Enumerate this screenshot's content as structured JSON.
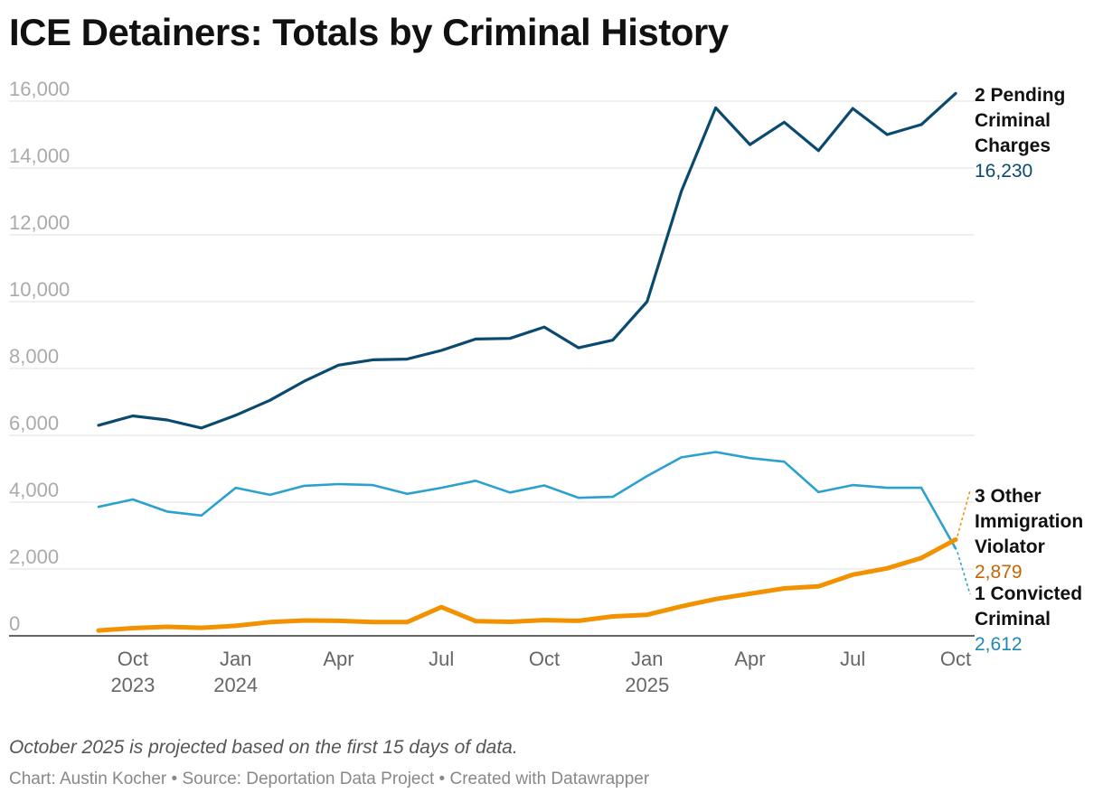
{
  "title": "ICE Detainers: Totals by Criminal History",
  "note": "October 2025 is projected based on the first 15 days of data.",
  "credit": "Chart: Austin Kocher • Source: Deportation Data Project • Created with Datawrapper",
  "chart_data": {
    "type": "line",
    "title": "ICE Detainers: Totals by Criminal History",
    "ylim": [
      0,
      16000
    ],
    "y_ticks": [
      "16,000",
      "14,000",
      "12,000",
      "10,000",
      "8,000",
      "6,000",
      "4,000",
      "2,000",
      "0"
    ],
    "y_tick_values": [
      16000,
      14000,
      12000,
      10000,
      8000,
      6000,
      4000,
      2000,
      0
    ],
    "x": [
      "2023-09",
      "2023-10",
      "2023-11",
      "2023-12",
      "2024-01",
      "2024-02",
      "2024-03",
      "2024-04",
      "2024-05",
      "2024-06",
      "2024-07",
      "2024-08",
      "2024-09",
      "2024-10",
      "2024-11",
      "2024-12",
      "2025-01",
      "2025-02",
      "2025-03",
      "2025-04",
      "2025-05",
      "2025-06",
      "2025-07",
      "2025-08",
      "2025-09",
      "2025-10"
    ],
    "x_ticks": [
      {
        "index": 1,
        "line1": "Oct",
        "line2": "2023"
      },
      {
        "index": 4,
        "line1": "Jan",
        "line2": "2024"
      },
      {
        "index": 7,
        "line1": "Apr",
        "line2": ""
      },
      {
        "index": 10,
        "line1": "Jul",
        "line2": ""
      },
      {
        "index": 13,
        "line1": "Oct",
        "line2": ""
      },
      {
        "index": 16,
        "line1": "Jan",
        "line2": "2025"
      },
      {
        "index": 19,
        "line1": "Apr",
        "line2": ""
      },
      {
        "index": 22,
        "line1": "Jul",
        "line2": ""
      },
      {
        "index": 25,
        "line1": "Oct",
        "line2": ""
      }
    ],
    "projected_last_point": true,
    "series": [
      {
        "name": "2 Pending Criminal Charges",
        "label_lines": [
          "2 Pending",
          "Criminal",
          "Charges"
        ],
        "last_value_label": "16,230",
        "color": "#0b4a6f",
        "label_value_color": "#0b4a6f",
        "values": [
          6300,
          6580,
          6460,
          6220,
          6600,
          7050,
          7620,
          8100,
          8260,
          8280,
          8540,
          8880,
          8900,
          9240,
          8620,
          8850,
          10000,
          13300,
          15800,
          14700,
          15370,
          14520,
          15780,
          15000,
          15300,
          16230
        ]
      },
      {
        "name": "1 Convicted Criminal",
        "label_lines": [
          "1 Convicted",
          "Criminal"
        ],
        "last_value_label": "2,612",
        "color": "#2ba1cf",
        "label_value_color": "#2287b3",
        "values": [
          3860,
          4080,
          3720,
          3600,
          4430,
          4220,
          4490,
          4540,
          4510,
          4250,
          4430,
          4640,
          4290,
          4500,
          4130,
          4160,
          4780,
          5340,
          5500,
          5320,
          5210,
          4300,
          4510,
          4430,
          4430,
          2612
        ]
      },
      {
        "name": "3 Other Immigration Violator",
        "label_lines": [
          "3 Other",
          "Immigration",
          "Violator"
        ],
        "last_value_label": "2,879",
        "color": "#f39200",
        "label_value_color": "#c86400",
        "values": [
          160,
          230,
          270,
          240,
          300,
          410,
          460,
          450,
          410,
          410,
          860,
          440,
          420,
          470,
          450,
          580,
          630,
          880,
          1100,
          1260,
          1420,
          1480,
          1830,
          2020,
          2330,
          2879
        ]
      }
    ]
  }
}
